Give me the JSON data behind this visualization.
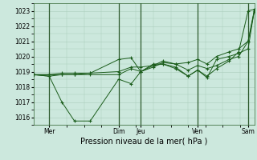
{
  "background_color": "#cce8dd",
  "grid_color": "#aaccbb",
  "line_color": "#1a5c1a",
  "marker_color": "#1a5c1a",
  "xlabel": "Pression niveau de la mer( hPa )",
  "ylim": [
    1015.5,
    1023.5
  ],
  "yticks": [
    1016,
    1017,
    1018,
    1019,
    1020,
    1021,
    1022,
    1023
  ],
  "xlim": [
    0.0,
    7.0
  ],
  "vline_positions": [
    0.5,
    2.7,
    3.4,
    5.2,
    6.8
  ],
  "xtick_positions": [
    0.5,
    2.7,
    3.4,
    5.2,
    6.8
  ],
  "xtick_labels": [
    "Mer",
    "Dim",
    "Jeu",
    "Ven",
    "Sam"
  ],
  "series": [
    {
      "x": [
        0.0,
        0.5,
        0.9,
        1.3,
        1.8,
        2.7,
        3.1,
        3.4,
        3.8,
        4.1,
        4.5,
        4.9,
        5.2,
        5.5,
        5.8,
        6.2,
        6.5,
        6.8,
        7.0
      ],
      "y": [
        1018.8,
        1018.7,
        1017.0,
        1015.75,
        1015.75,
        1018.5,
        1018.2,
        1019.0,
        1019.4,
        1019.5,
        1019.2,
        1018.7,
        1019.1,
        1018.7,
        1019.2,
        1019.7,
        1020.3,
        1023.0,
        1023.1
      ]
    },
    {
      "x": [
        0.0,
        0.5,
        0.9,
        1.3,
        1.8,
        2.7,
        3.1,
        3.4,
        3.8,
        4.1,
        4.5,
        4.9,
        5.2,
        5.5,
        5.8,
        6.2,
        6.5,
        6.8,
        7.0
      ],
      "y": [
        1018.8,
        1018.8,
        1018.8,
        1018.8,
        1018.9,
        1019.0,
        1019.3,
        1019.3,
        1019.4,
        1019.7,
        1019.5,
        1019.1,
        1019.4,
        1019.2,
        1019.4,
        1019.8,
        1020.0,
        1021.0,
        1023.1
      ]
    },
    {
      "x": [
        0.0,
        0.5,
        0.9,
        1.3,
        1.8,
        2.7,
        3.1,
        3.4,
        3.8,
        4.1,
        4.5,
        4.9,
        5.2,
        5.5,
        5.8,
        6.2,
        6.5,
        6.8,
        7.0
      ],
      "y": [
        1018.8,
        1018.8,
        1018.9,
        1018.9,
        1018.9,
        1019.8,
        1019.9,
        1019.0,
        1019.5,
        1019.5,
        1019.3,
        1018.7,
        1019.1,
        1018.6,
        1019.8,
        1020.0,
        1020.2,
        1020.5,
        1023.1
      ]
    },
    {
      "x": [
        0.0,
        0.5,
        0.9,
        1.3,
        1.8,
        2.7,
        3.1,
        3.4,
        3.8,
        4.1,
        4.5,
        4.9,
        5.2,
        5.5,
        5.8,
        6.2,
        6.5,
        6.8,
        7.0
      ],
      "y": [
        1018.8,
        1018.7,
        1018.8,
        1018.8,
        1018.8,
        1018.8,
        1019.2,
        1019.0,
        1019.3,
        1019.6,
        1019.5,
        1019.6,
        1019.8,
        1019.5,
        1020.0,
        1020.3,
        1020.5,
        1021.0,
        1023.0
      ]
    }
  ]
}
